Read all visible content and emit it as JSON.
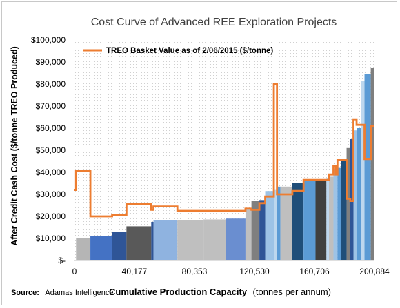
{
  "chart_data": {
    "type": "bar",
    "subtype": "cost-curve (variable-width bars) with step line",
    "title": "Cost Curve of Advanced REE Exploration Projects",
    "xlabel_bold": "Cumulative Production Capacity",
    "xlabel_rest": "(tonnes per annum)",
    "ylabel": "After Credit Cash Cost ($/tonne TREO Produced)",
    "source_label": "Source:",
    "source_text": "Adamas Intelligence",
    "legend": {
      "label": "TREO Basket Value as of 2/06/2015 ($/tonne)",
      "placement": "top-left"
    },
    "xlim": [
      0,
      200884
    ],
    "ylim": [
      0,
      100000
    ],
    "x_ticks": [
      "0",
      "40,177",
      "80,353",
      "120,530",
      "160,706",
      "200,884"
    ],
    "y_ticks": [
      "$-",
      "$10,000",
      "$20,000",
      "$30,000",
      "$40,000",
      "$50,000",
      "$60,000",
      "$70,000",
      "$80,000",
      "$90,000",
      "$100,000"
    ],
    "grid": "dotted background pattern",
    "projects": [
      {
        "x_start": 1050,
        "x_end": 10650,
        "cost": 10000,
        "color": "#b5b5b5"
      },
      {
        "x_start": 10650,
        "x_end": 25200,
        "cost": 11000,
        "color": "#4472c4"
      },
      {
        "x_start": 25200,
        "x_end": 34800,
        "cost": 13000,
        "color": "#2f5597"
      },
      {
        "x_start": 34800,
        "x_end": 51400,
        "cost": 15500,
        "color": "#595959"
      },
      {
        "x_start": 51400,
        "x_end": 52900,
        "cost": 17500,
        "color": "#2f5597"
      },
      {
        "x_start": 52900,
        "x_end": 68900,
        "cost": 18200,
        "color": "#8fb3e0"
      },
      {
        "x_start": 68900,
        "x_end": 86400,
        "cost": 18400,
        "color": "#bfbfbf"
      },
      {
        "x_start": 86400,
        "x_end": 101300,
        "cost": 18600,
        "color": "#bfbfbf"
      },
      {
        "x_start": 101300,
        "x_end": 114500,
        "cost": 19000,
        "color": "#6a8ed0"
      },
      {
        "x_start": 114500,
        "x_end": 118500,
        "cost": 23500,
        "color": "#bfbfbf"
      },
      {
        "x_start": 118500,
        "x_end": 123800,
        "cost": 27000,
        "color": "#7f7f7f"
      },
      {
        "x_start": 123800,
        "x_end": 127700,
        "cost": 27400,
        "color": "#2f5597"
      },
      {
        "x_start": 127700,
        "x_end": 133500,
        "cost": 31500,
        "color": "#9dc3e6"
      },
      {
        "x_start": 133500,
        "x_end": 135600,
        "cost": 32000,
        "color": "#bdd7ee"
      },
      {
        "x_start": 135600,
        "x_end": 137900,
        "cost": 33500,
        "color": "#5b9bd5"
      },
      {
        "x_start": 137900,
        "x_end": 145900,
        "cost": 33500,
        "color": "#bfbfbf"
      },
      {
        "x_start": 145900,
        "x_end": 153400,
        "cost": 35000,
        "color": "#1f4e79"
      },
      {
        "x_start": 153400,
        "x_end": 161400,
        "cost": 36400,
        "color": "#5b9bd5"
      },
      {
        "x_start": 161400,
        "x_end": 168700,
        "cost": 36500,
        "color": "#404040"
      },
      {
        "x_start": 168700,
        "x_end": 170400,
        "cost": 37500,
        "color": "#bdd7ee"
      },
      {
        "x_start": 170400,
        "x_end": 173400,
        "cost": 38000,
        "color": "#bfbfbf"
      },
      {
        "x_start": 173400,
        "x_end": 176100,
        "cost": 41000,
        "color": "#9dc3e6"
      },
      {
        "x_start": 176100,
        "x_end": 178300,
        "cost": 42000,
        "color": "#5b9bd5"
      },
      {
        "x_start": 178300,
        "x_end": 182200,
        "cost": 45000,
        "color": "#1f4e79"
      },
      {
        "x_start": 182200,
        "x_end": 184700,
        "cost": 51000,
        "color": "#7f7f7f"
      },
      {
        "x_start": 184700,
        "x_end": 186800,
        "cost": 55000,
        "color": "#2f5597"
      },
      {
        "x_start": 186800,
        "x_end": 188900,
        "cost": 59000,
        "color": "#9dc3e6"
      },
      {
        "x_start": 188900,
        "x_end": 192100,
        "cost": 60000,
        "color": "#5b9bd5"
      },
      {
        "x_start": 192100,
        "x_end": 194200,
        "cost": 81500,
        "color": "#bdd7ee"
      },
      {
        "x_start": 194200,
        "x_end": 198400,
        "cost": 84500,
        "color": "#5b9bd5"
      },
      {
        "x_start": 198400,
        "x_end": 200884,
        "cost": 87500,
        "color": "#7f7f7f"
      }
    ],
    "line_series": {
      "name": "TREO Basket Value as of 2/06/2015 ($/tonne)",
      "color": "#ed7d31",
      "points": [
        [
          0,
          32000
        ],
        [
          1050,
          32000
        ],
        [
          1050,
          40500
        ],
        [
          10650,
          40500
        ],
        [
          10650,
          20000
        ],
        [
          25200,
          20000
        ],
        [
          25200,
          20500
        ],
        [
          34800,
          20500
        ],
        [
          34800,
          25500
        ],
        [
          51400,
          25500
        ],
        [
          51400,
          23000
        ],
        [
          52900,
          23000
        ],
        [
          52900,
          24500
        ],
        [
          68900,
          24500
        ],
        [
          68900,
          22500
        ],
        [
          114500,
          22500
        ],
        [
          114500,
          23500
        ],
        [
          118500,
          23500
        ],
        [
          118500,
          23000
        ],
        [
          123800,
          23000
        ],
        [
          123800,
          26000
        ],
        [
          127700,
          26000
        ],
        [
          127700,
          29000
        ],
        [
          133500,
          29000
        ],
        [
          133500,
          80000
        ],
        [
          135600,
          80000
        ],
        [
          135600,
          30000
        ],
        [
          145900,
          30000
        ],
        [
          145900,
          31500
        ],
        [
          153400,
          31500
        ],
        [
          153400,
          36500
        ],
        [
          170400,
          36500
        ],
        [
          170400,
          39000
        ],
        [
          173400,
          39000
        ],
        [
          173400,
          43000
        ],
        [
          174800,
          43000
        ],
        [
          174800,
          39000
        ],
        [
          176100,
          39000
        ],
        [
          176100,
          45500
        ],
        [
          182200,
          45500
        ],
        [
          182200,
          28000
        ],
        [
          184700,
          28000
        ],
        [
          184700,
          27000
        ],
        [
          186800,
          27000
        ],
        [
          186800,
          64000
        ],
        [
          188900,
          64000
        ],
        [
          188900,
          61500
        ],
        [
          192100,
          61500
        ],
        [
          192100,
          61500
        ],
        [
          194200,
          61500
        ],
        [
          194200,
          46000
        ],
        [
          198400,
          46000
        ],
        [
          198400,
          61000
        ],
        [
          200884,
          61000
        ]
      ]
    }
  }
}
